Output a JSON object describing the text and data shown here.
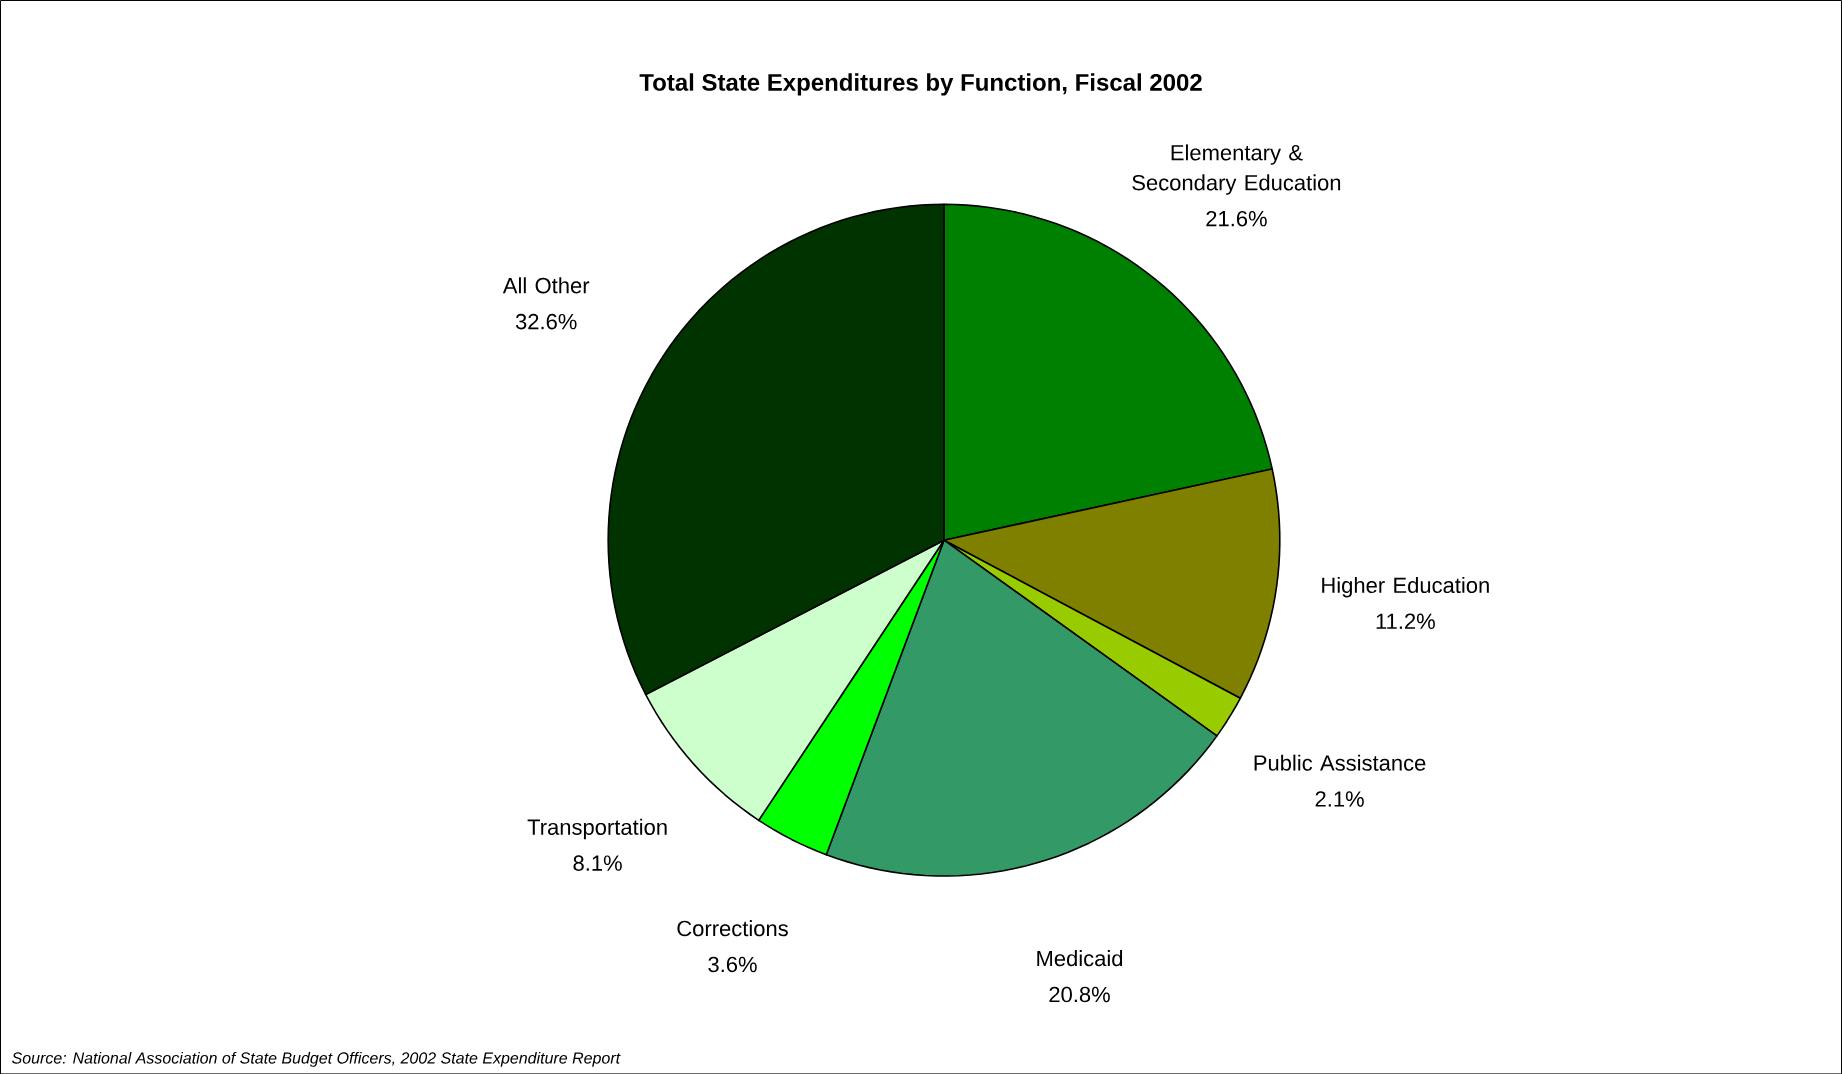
{
  "chart_data": {
    "type": "pie",
    "title": "Total State Expenditures by Function, Fiscal 2002",
    "categories": [
      "Elementary & Secondary Education",
      "Higher Education",
      "Public Assistance",
      "Medicaid",
      "Corrections",
      "Transportation",
      "All Other"
    ],
    "values": [
      21.6,
      11.2,
      2.1,
      20.8,
      3.6,
      8.1,
      32.6
    ],
    "value_labels": [
      "21.6%",
      "11.2%",
      "2.1%",
      "20.8%",
      "3.6%",
      "8.1%",
      "32.6%"
    ],
    "colors": [
      "#008000",
      "#808000",
      "#99cc00",
      "#339966",
      "#00ff00",
      "#ccffcc",
      "#003300"
    ],
    "annotations": [
      "*Source: National Association of State Budget Officers, 2002 State Expenditure Report*"
    ]
  }
}
